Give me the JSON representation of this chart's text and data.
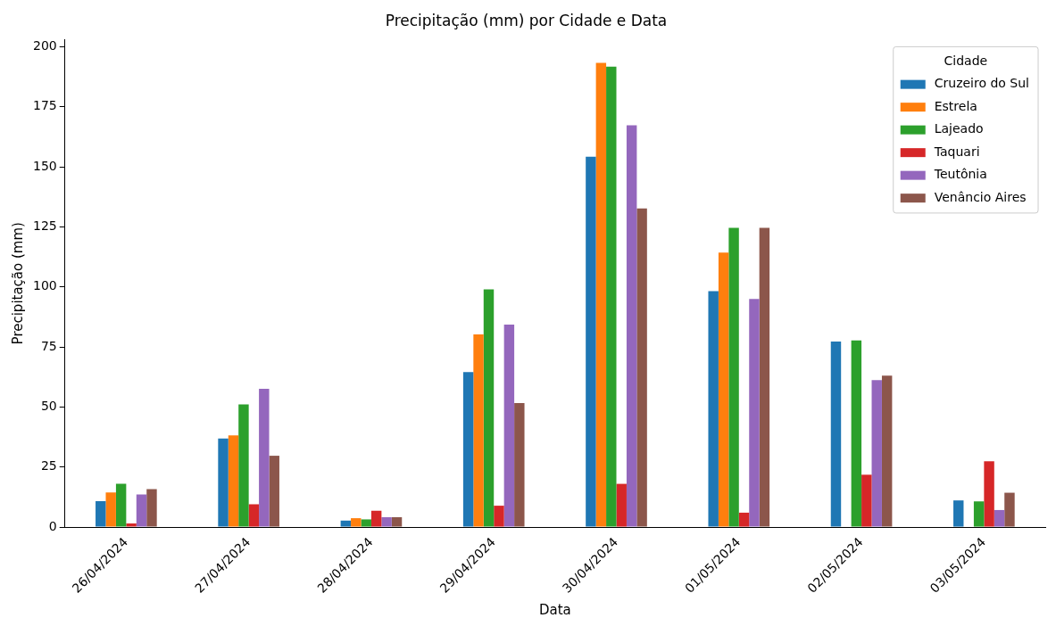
{
  "chart_data": {
    "type": "bar",
    "title": "Precipitação (mm) por Cidade e Data",
    "xlabel": "Data",
    "ylabel": "Precipitação (mm)",
    "legend_title": "Cidade",
    "legend": "top right",
    "grid": false,
    "categories": [
      "26/04/2024",
      "27/04/2024",
      "28/04/2024",
      "29/04/2024",
      "30/04/2024",
      "01/05/2024",
      "02/05/2024",
      "03/05/2024"
    ],
    "ylim": [
      0,
      203
    ],
    "yticks": [
      0,
      25,
      50,
      75,
      100,
      125,
      150,
      175,
      200
    ],
    "series": [
      {
        "name": "Cruzeiro do Sul",
        "color": "#1f77b4",
        "values": [
          10.8,
          36.9,
          2.7,
          64.5,
          154.2,
          98.2,
          77.3,
          11.1
        ]
      },
      {
        "name": "Estrela",
        "color": "#ff7f0e",
        "values": [
          14.4,
          38.2,
          3.7,
          80.2,
          193.3,
          114.3,
          null,
          null
        ]
      },
      {
        "name": "Lajeado",
        "color": "#2ca02c",
        "values": [
          18.0,
          51.1,
          3.2,
          99.0,
          191.7,
          124.6,
          77.7,
          10.7
        ]
      },
      {
        "name": "Taquari",
        "color": "#d62728",
        "values": [
          1.5,
          9.5,
          6.8,
          8.9,
          18.0,
          6.0,
          21.8,
          27.4
        ]
      },
      {
        "name": "Teutônia",
        "color": "#9467bd",
        "values": [
          13.6,
          57.6,
          4.1,
          84.3,
          167.3,
          95.0,
          61.2,
          7.1
        ]
      },
      {
        "name": "Venâncio Aires",
        "color": "#8c564b",
        "values": [
          15.8,
          29.7,
          4.1,
          51.6,
          132.7,
          124.6,
          63.1,
          14.3
        ]
      }
    ]
  }
}
